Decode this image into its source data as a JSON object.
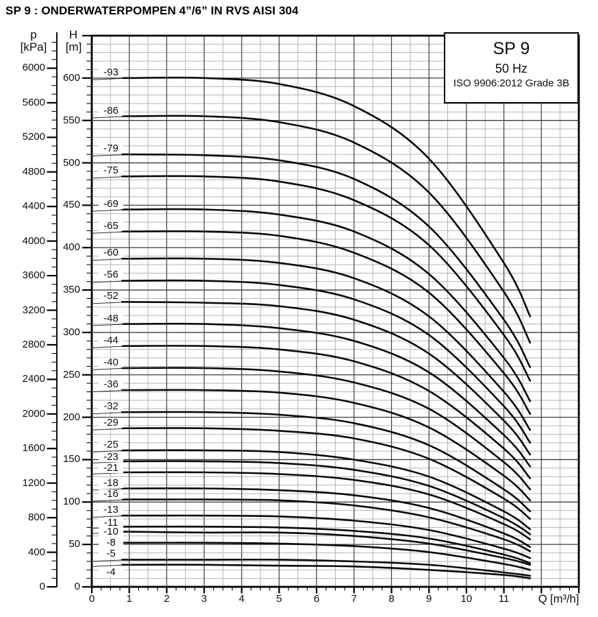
{
  "title": "SP 9 : ONDERWATERPOMPEN 4”/6” IN RVS AISI 304",
  "legend": {
    "model": "SP 9",
    "frequency": "50 Hz",
    "standard": "ISO 9906:2012 Grade 3B"
  },
  "axes": {
    "pressure": {
      "symbol": "p",
      "unit": "[kPa]"
    },
    "head": {
      "symbol": "H",
      "unit": "[m]"
    },
    "flow": {
      "label": "Q [m³/h]"
    }
  },
  "colors": {
    "curve": "#0a0a0a",
    "leader": "#2e2e2e",
    "grid_major": "#3c3c3c",
    "grid_minor": "#b3b3b3",
    "axis": "#000000"
  },
  "chart_data": {
    "type": "line",
    "xlabel": "Q [m³/h]",
    "ylabel_left": "p [kPa]",
    "ylabel_right": "H [m]",
    "grid": true,
    "legend_position": "top-right",
    "flow_axis": {
      "min": 0,
      "max": 13,
      "major_step": 1,
      "grid_minor_step": 0.5,
      "tick_step": 0.25,
      "labeled_ticks": [
        0,
        1,
        2,
        3,
        4,
        5,
        6,
        7,
        8,
        9,
        10,
        11
      ]
    },
    "head_axis": {
      "min": 0,
      "max": 650,
      "major_step": 50,
      "minor_step": 10,
      "labeled_ticks": [
        0,
        50,
        100,
        150,
        200,
        250,
        300,
        350,
        400,
        450,
        500,
        550,
        600
      ]
    },
    "pressure_axis": {
      "min": 0,
      "max": 6400,
      "major_step": 400,
      "minor_step": 100,
      "kpa_per_m": 9.81,
      "labeled_ticks": [
        0,
        400,
        800,
        1200,
        1600,
        2000,
        2400,
        2800,
        3200,
        3600,
        4000,
        4400,
        4800,
        5200,
        5600,
        6000
      ]
    },
    "q_start": 0.88,
    "q_points": [
      1,
      3,
      5,
      7,
      9,
      11,
      11.7
    ],
    "series": [
      {
        "label": "-93",
        "stages": 93,
        "label_dy": -8,
        "head_m": [
          600,
          600,
          593,
          567,
          505,
          382,
          319
        ]
      },
      {
        "label": "-86",
        "stages": 86,
        "label_dy": -8,
        "head_m": [
          555,
          555,
          548,
          524,
          465,
          348,
          288
        ]
      },
      {
        "label": "-79",
        "stages": 79,
        "label_dy": -8,
        "head_m": [
          510,
          509,
          503,
          481,
          425,
          315,
          259
        ]
      },
      {
        "label": "-75",
        "stages": 75,
        "label_dy": -8,
        "head_m": [
          484,
          484,
          478,
          456,
          403,
          297,
          243
        ]
      },
      {
        "label": "-69",
        "stages": 69,
        "label_dy": -8,
        "head_m": [
          445,
          445,
          439,
          419,
          369,
          270,
          219
        ]
      },
      {
        "label": "-65",
        "stages": 65,
        "label_dy": -8,
        "head_m": [
          419,
          419,
          414,
          394,
          347,
          252,
          204
        ]
      },
      {
        "label": "-60",
        "stages": 60,
        "label_dy": -8,
        "head_m": [
          387,
          387,
          382,
          364,
          319,
          230,
          185
        ]
      },
      {
        "label": "-56",
        "stages": 56,
        "label_dy": -8,
        "head_m": [
          361,
          361,
          356,
          339,
          297,
          213,
          170
        ]
      },
      {
        "label": "-52",
        "stages": 52,
        "label_dy": -8,
        "head_m": [
          336,
          335,
          331,
          315,
          275,
          196,
          156
        ]
      },
      {
        "label": "-48",
        "stages": 48,
        "label_dy": -8,
        "head_m": [
          310,
          310,
          305,
          290,
          253,
          179,
          142
        ]
      },
      {
        "label": "-44",
        "stages": 44,
        "label_dy": -8,
        "head_m": [
          284,
          284,
          280,
          266,
          231,
          163,
          128
        ]
      },
      {
        "label": "-40",
        "stages": 40,
        "label_dy": -8,
        "head_m": [
          258,
          258,
          254,
          241,
          210,
          147,
          115
        ]
      },
      {
        "label": "-36",
        "stages": 36,
        "label_dy": -8,
        "head_m": [
          232,
          232,
          229,
          217,
          188,
          131,
          102
        ]
      },
      {
        "label": "-32",
        "stages": 32,
        "label_dy": -8,
        "head_m": [
          206,
          206,
          203,
          193,
          167,
          115,
          89
        ]
      },
      {
        "label": "-29",
        "stages": 29,
        "label_dy": -8,
        "head_m": [
          187,
          187,
          184,
          175,
          151,
          104,
          80
        ]
      },
      {
        "label": "-25",
        "stages": 25,
        "label_dy": -8,
        "head_m": [
          161,
          161,
          159,
          150,
          130,
          89,
          68
        ]
      },
      {
        "label": "-23",
        "stages": 23,
        "label_dy": -6,
        "head_m": [
          148,
          148,
          146,
          138,
          119,
          81,
          62
        ]
      },
      {
        "label": "-21",
        "stages": 21,
        "label_dy": -6,
        "head_m": [
          135,
          135,
          133,
          126,
          109,
          74,
          56
        ]
      },
      {
        "label": "-18",
        "stages": 18,
        "label_dy": -8,
        "head_m": [
          116,
          116,
          114,
          108,
          93,
          63,
          47
        ]
      },
      {
        "label": "-16",
        "stages": 16,
        "label_dy": -8,
        "head_m": [
          103,
          103,
          102,
          96,
          82,
          56,
          42
        ]
      },
      {
        "label": "-13",
        "stages": 13,
        "label_dy": -8,
        "head_m": [
          84,
          84,
          83,
          78,
          67,
          45,
          34
        ]
      },
      {
        "label": "-11",
        "stages": 11,
        "label_dy": -5,
        "head_m": [
          71,
          71,
          70,
          66,
          57,
          38,
          28
        ]
      },
      {
        "label": "-10",
        "stages": 10,
        "label_dy": 0,
        "head_m": [
          65,
          64,
          64,
          60,
          51,
          34,
          26
        ]
      },
      {
        "label": "-8",
        "stages": 8,
        "label_dy": 0,
        "head_m": [
          52,
          52,
          51,
          48,
          41,
          27,
          20
        ]
      },
      {
        "label": "-5",
        "stages": 5,
        "label_dy": -8,
        "head_m": [
          32,
          32,
          32,
          30,
          26,
          17,
          13
        ]
      },
      {
        "label": "-4",
        "stages": 4,
        "label_dy": 11,
        "head_m": [
          26,
          26,
          25,
          24,
          20,
          14,
          10
        ]
      }
    ]
  }
}
